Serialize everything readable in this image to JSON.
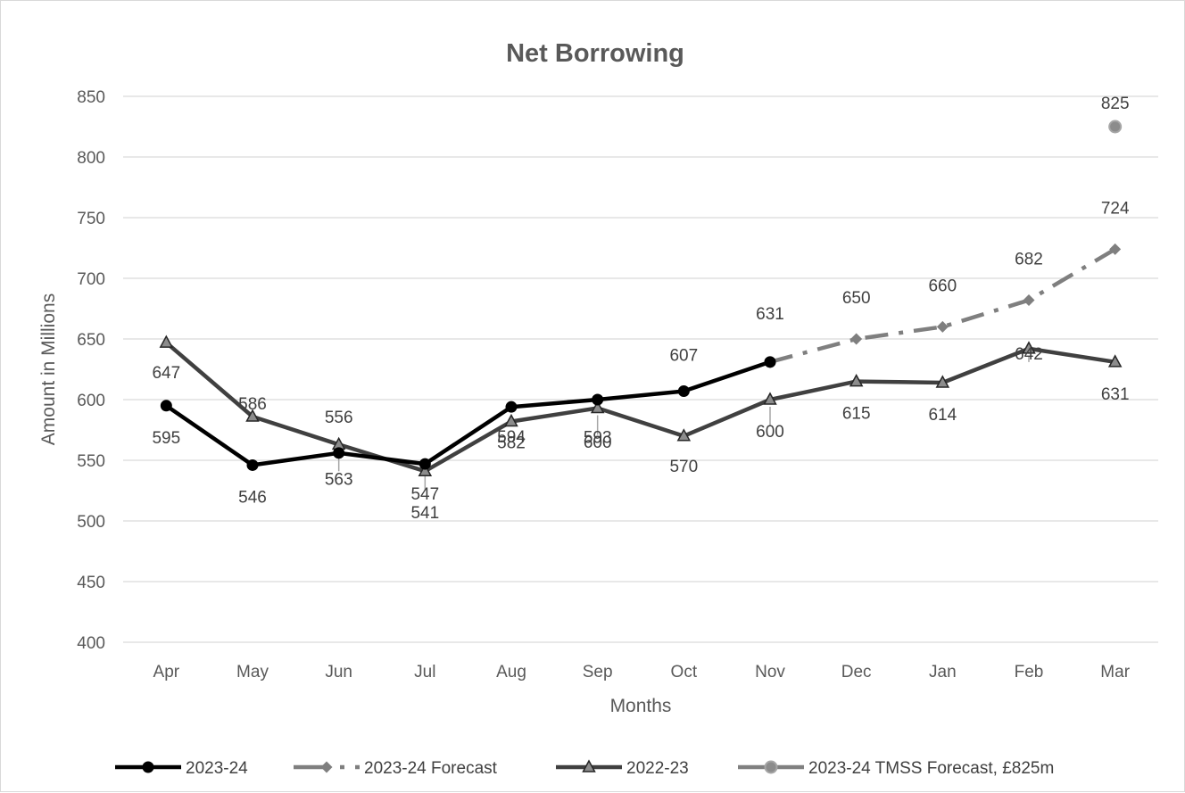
{
  "chart_data": {
    "type": "line",
    "title": "Net Borrowing",
    "xlabel": "Months",
    "ylabel": "Amount in  Millions",
    "categories": [
      "Apr",
      "May",
      "Jun",
      "Jul",
      "Aug",
      "Sep",
      "Oct",
      "Nov",
      "Dec",
      "Jan",
      "Feb",
      "Mar"
    ],
    "ylim": [
      400,
      850
    ],
    "yticks": [
      400,
      450,
      500,
      550,
      600,
      650,
      700,
      750,
      800,
      850
    ],
    "grid": true,
    "legend_position": "bottom",
    "series": [
      {
        "name": "2023-24",
        "color": "#000000",
        "marker": "circle",
        "line_style": "solid",
        "values": [
          595,
          546,
          556,
          547,
          594,
          600,
          607,
          631,
          null,
          null,
          null,
          null
        ]
      },
      {
        "name": "2023-24 Forecast",
        "color": "#7f7f7f",
        "marker": "diamond",
        "line_style": "dash-dot",
        "values": [
          null,
          null,
          null,
          null,
          null,
          null,
          null,
          631,
          650,
          660,
          682,
          724
        ]
      },
      {
        "name": "2022-23",
        "color": "#404040",
        "marker": "triangle",
        "line_style": "solid",
        "values": [
          647,
          586,
          563,
          541,
          582,
          593,
          570,
          600,
          615,
          614,
          642,
          631
        ]
      },
      {
        "name": "2023-24 TMSS Forecast, £825m",
        "color": "#808080",
        "marker": "circle",
        "line_style": "solid",
        "values": [
          null,
          null,
          null,
          null,
          null,
          null,
          null,
          null,
          null,
          null,
          null,
          825
        ]
      }
    ]
  }
}
